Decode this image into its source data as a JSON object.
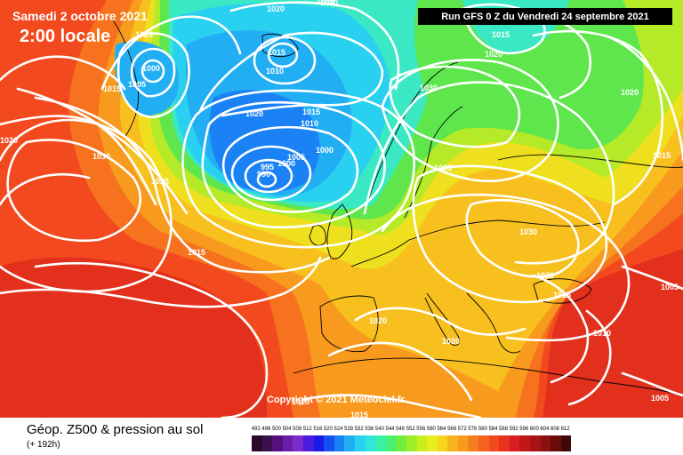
{
  "header": {
    "date_text": "Samedi 2 octobre 2021",
    "time_text": "2:00 locale",
    "run_text": "Run GFS 0 Z du Vendredi 24 septembre 2021"
  },
  "map": {
    "copyright": "Copyright © 2021 Meteociel.fr",
    "pressure_labels": [
      {
        "id": "p1025a",
        "text": "1025"
      },
      {
        "id": "p1000a",
        "text": "1000"
      },
      {
        "id": "p1015a",
        "text": "1015"
      },
      {
        "id": "p1005a",
        "text": "1005"
      },
      {
        "id": "p1020a",
        "text": "1020"
      },
      {
        "id": "p1020b",
        "text": "1020"
      },
      {
        "id": "p1015b",
        "text": "1015"
      },
      {
        "id": "p1010a",
        "text": "1010"
      },
      {
        "id": "p1030a",
        "text": "1030"
      },
      {
        "id": "p1020c",
        "text": "1020"
      },
      {
        "id": "p1015c",
        "text": "1015"
      },
      {
        "id": "p1020d",
        "text": "1020"
      },
      {
        "id": "p1030b",
        "text": "1030"
      },
      {
        "id": "p1020e",
        "text": "1020"
      },
      {
        "id": "p1020f",
        "text": "1020"
      },
      {
        "id": "p1030c",
        "text": "1030"
      },
      {
        "id": "p1015d",
        "text": "1015"
      },
      {
        "id": "p1010b",
        "text": "1010"
      },
      {
        "id": "p1000b",
        "text": "1000"
      },
      {
        "id": "p1005b",
        "text": "1005"
      },
      {
        "id": "p1000c",
        "text": "1000"
      },
      {
        "id": "p995a",
        "text": "995"
      },
      {
        "id": "p990a",
        "text": "990"
      },
      {
        "id": "p1030d",
        "text": "1030"
      },
      {
        "id": "p1025b",
        "text": "1025"
      },
      {
        "id": "p1025c",
        "text": "1025"
      },
      {
        "id": "p1015e",
        "text": "1015"
      },
      {
        "id": "p1015f",
        "text": "1015"
      },
      {
        "id": "p1030e",
        "text": "1030"
      },
      {
        "id": "p1020g",
        "text": "1020"
      },
      {
        "id": "p1015g",
        "text": "1015"
      },
      {
        "id": "p1020h",
        "text": "1020"
      },
      {
        "id": "p1020i",
        "text": "1020"
      },
      {
        "id": "p1010c",
        "text": "1010"
      },
      {
        "id": "p1005c",
        "text": "1005"
      },
      {
        "id": "p1005d",
        "text": "1005"
      },
      {
        "id": "p1015h",
        "text": "1015"
      },
      {
        "id": "p1015i",
        "text": "1015"
      }
    ]
  },
  "legend": {
    "title": "Géop. Z500 & pression au sol",
    "subtitle": "(+ 192h)",
    "scale_values": [
      "492",
      "496",
      "500",
      "504",
      "508",
      "512",
      "516",
      "520",
      "524",
      "528",
      "532",
      "536",
      "540",
      "544",
      "548",
      "552",
      "556",
      "560",
      "564",
      "568",
      "572",
      "576",
      "580",
      "584",
      "588",
      "592",
      "596",
      "600",
      "604",
      "608",
      "612"
    ],
    "scale_colors": [
      "#2a0a2a",
      "#3c0f50",
      "#560f7e",
      "#6a1ea6",
      "#7a2ccc",
      "#4a1ae0",
      "#1a1ae8",
      "#1450f0",
      "#1a82f5",
      "#22aef2",
      "#28d2f0",
      "#30e6dc",
      "#38f0a8",
      "#4cf070",
      "#72ee3c",
      "#a0ee28",
      "#c8ee1e",
      "#eaee1e",
      "#f8d41e",
      "#f8b41e",
      "#f89a1e",
      "#f67e1e",
      "#f4621e",
      "#f04a1e",
      "#e8321e",
      "#d81e1e",
      "#c01818",
      "#a81414",
      "#8c1010",
      "#6a0c0c",
      "#400808"
    ]
  }
}
